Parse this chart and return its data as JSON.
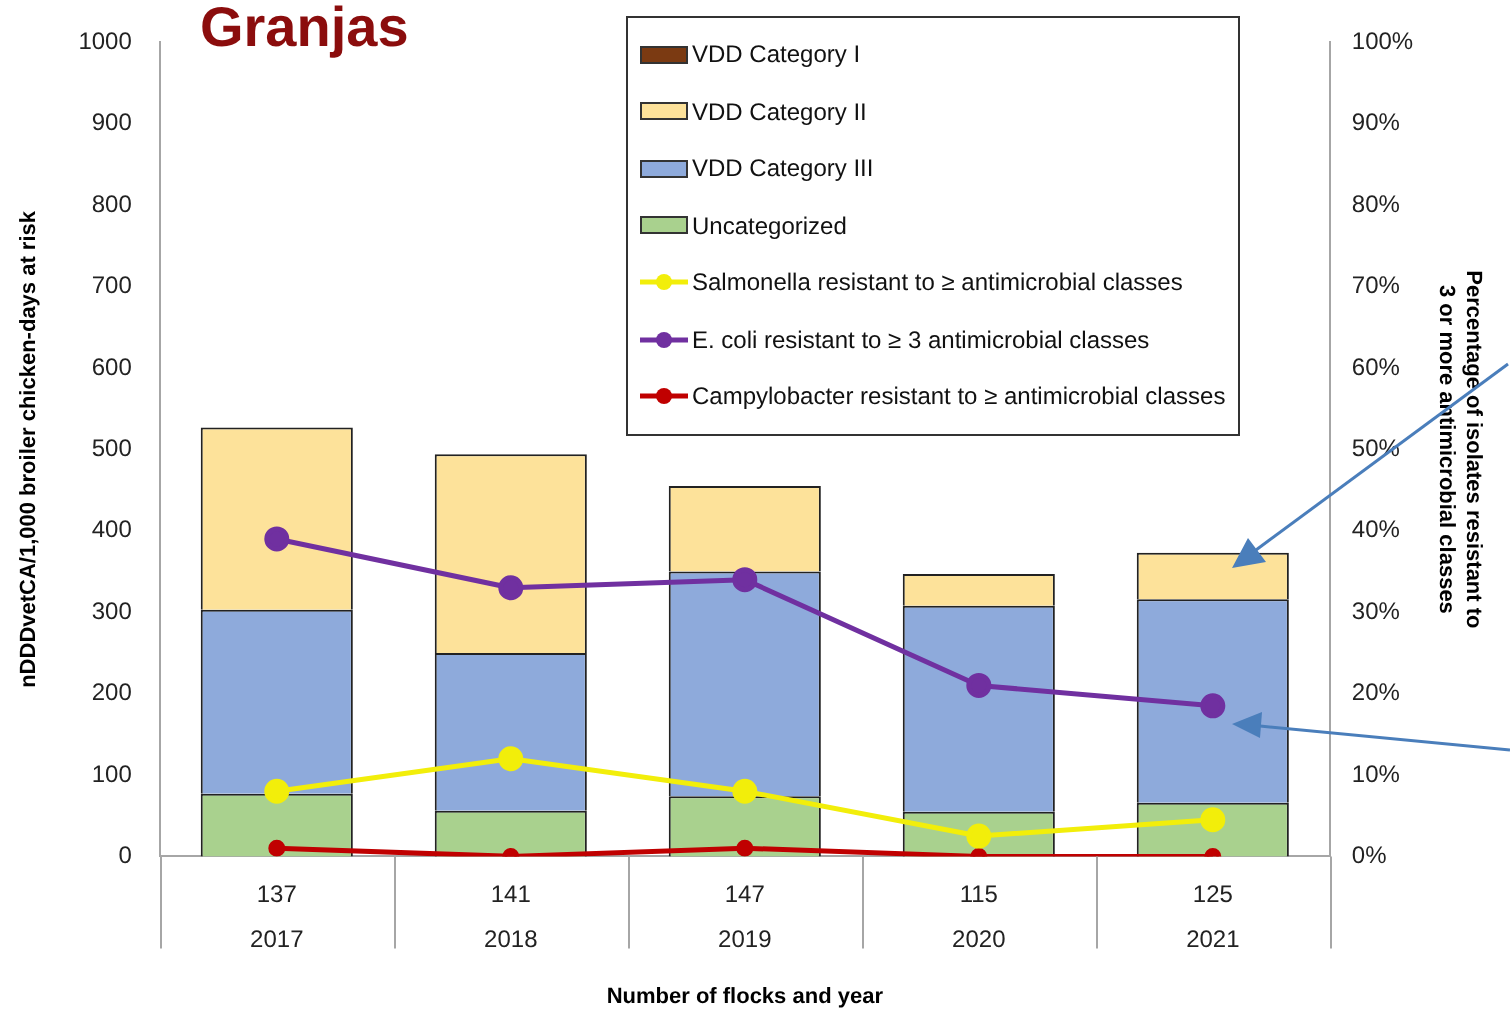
{
  "chart_data": {
    "type": "bar",
    "title": "Granjas",
    "xlabel": "Number of flocks and year",
    "ylabel": "nDDDvetCA/1,000 broiler chicken-days at risk",
    "y2label": "Percentage of isolates resistant to\n3 or more antimicrobial classes",
    "categories": [
      "137\n2017",
      "141\n2018",
      "147\n2019",
      "115\n2020",
      "125\n2021"
    ],
    "stacked": true,
    "grid": false,
    "legend": "top right",
    "marker": "circle",
    "ylim": [
      0,
      1000
    ],
    "yticks": [
      0,
      100,
      200,
      300,
      400,
      500,
      600,
      700,
      800,
      900,
      1000
    ],
    "y2lim": [
      0,
      100
    ],
    "y2ticks": [
      {
        "value": 0,
        "label": "0%"
      },
      {
        "value": 10,
        "label": "10%"
      },
      {
        "value": 20,
        "label": "20%"
      },
      {
        "value": 30,
        "label": "30%"
      },
      {
        "value": 40,
        "label": "40%"
      },
      {
        "value": 50,
        "label": "50%"
      },
      {
        "value": 60,
        "label": "60%"
      },
      {
        "value": 70,
        "label": "70%"
      },
      {
        "value": 80,
        "label": "80%"
      },
      {
        "value": 90,
        "label": "90%"
      },
      {
        "value": 100,
        "label": "100%"
      }
    ],
    "series": [
      {
        "name": "Uncategorized",
        "color": "#a9d18e",
        "values": [
          77,
          56,
          74,
          55,
          66
        ]
      },
      {
        "name": "VDD Category III",
        "color": "#8eaadb",
        "values": [
          226,
          194,
          276,
          253,
          250
        ]
      },
      {
        "name": "VDD Category II",
        "color": "#fde29a",
        "values": [
          224,
          244,
          105,
          39,
          57
        ]
      },
      {
        "name": "VDD Category I",
        "color": "#7b3a12",
        "values": [
          0,
          0,
          0,
          0,
          0
        ]
      },
      {
        "name": "Salmonella resistant to ≥ antimicrobial classes",
        "type": "line",
        "axis": "y2",
        "color": "#f2ee0a",
        "values": [
          8,
          12,
          8,
          2.5,
          4.5
        ]
      },
      {
        "name": "E. coli resistant to ≥ 3 antimicrobial classes",
        "type": "line",
        "axis": "y2",
        "color": "#7030a0",
        "values": [
          39,
          33,
          34,
          21,
          18.5
        ]
      },
      {
        "name": "Campylobacter resistant to ≥ antimicrobial classes",
        "type": "line",
        "axis": "y2",
        "color": "#c00000",
        "values": [
          1,
          0,
          1,
          0,
          0
        ]
      }
    ]
  }
}
